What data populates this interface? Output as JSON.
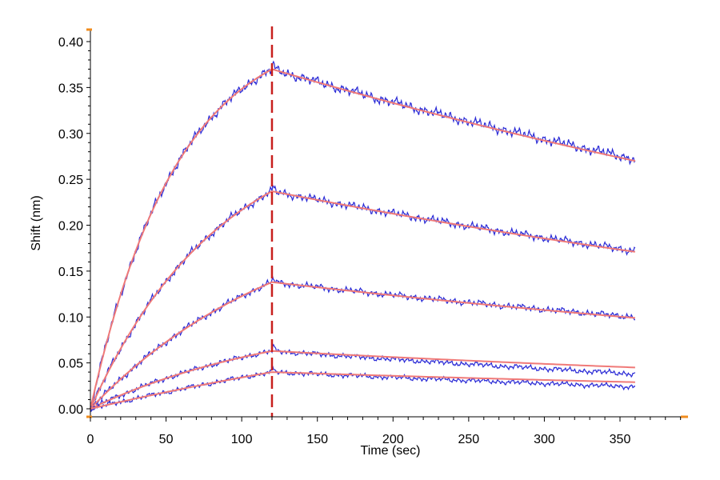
{
  "chart_data": {
    "type": "line",
    "title": "",
    "xlabel": "Time (sec)",
    "ylabel": "Shift (nm)",
    "xlim": [
      0,
      395
    ],
    "ylim": [
      0,
      0.41
    ],
    "x_ticks": [
      0,
      50,
      100,
      150,
      200,
      250,
      300,
      350
    ],
    "x_tick_labels": [
      "0",
      "50",
      "100",
      "150",
      "200",
      "250",
      "300",
      "350"
    ],
    "y_ticks": [
      0,
      0.05,
      0.1,
      0.15,
      0.2,
      0.25,
      0.3,
      0.35,
      0.4
    ],
    "y_tick_labels": [
      "0.00",
      "0.05",
      "0.10",
      "0.15",
      "0.20",
      "0.25",
      "0.30",
      "0.35",
      "0.40"
    ],
    "dissociation_start": 120,
    "end_time": 360,
    "grid": false,
    "legend": "none",
    "colors": {
      "measured": "#2a2ad6",
      "fit": "#f07a78",
      "marker_line": "#c8201e",
      "axis_tick_accent": "#f08c1e",
      "axis": "#000000"
    },
    "series": [
      {
        "fit_peak": 0.37,
        "fit_end": 0.27,
        "measured_end": 0.272,
        "association_curvature": 2.1
      },
      {
        "fit_peak": 0.237,
        "fit_end": 0.171,
        "measured_end": 0.172,
        "association_curvature": 1.4
      },
      {
        "fit_peak": 0.138,
        "fit_end": 0.099,
        "measured_end": 0.1,
        "association_curvature": 0.9
      },
      {
        "fit_peak": 0.063,
        "fit_end": 0.045,
        "measured_end": 0.038,
        "association_curvature": 0.9
      },
      {
        "fit_peak": 0.04,
        "fit_end": 0.029,
        "measured_end": 0.024,
        "association_curvature": 0.3
      }
    ]
  }
}
